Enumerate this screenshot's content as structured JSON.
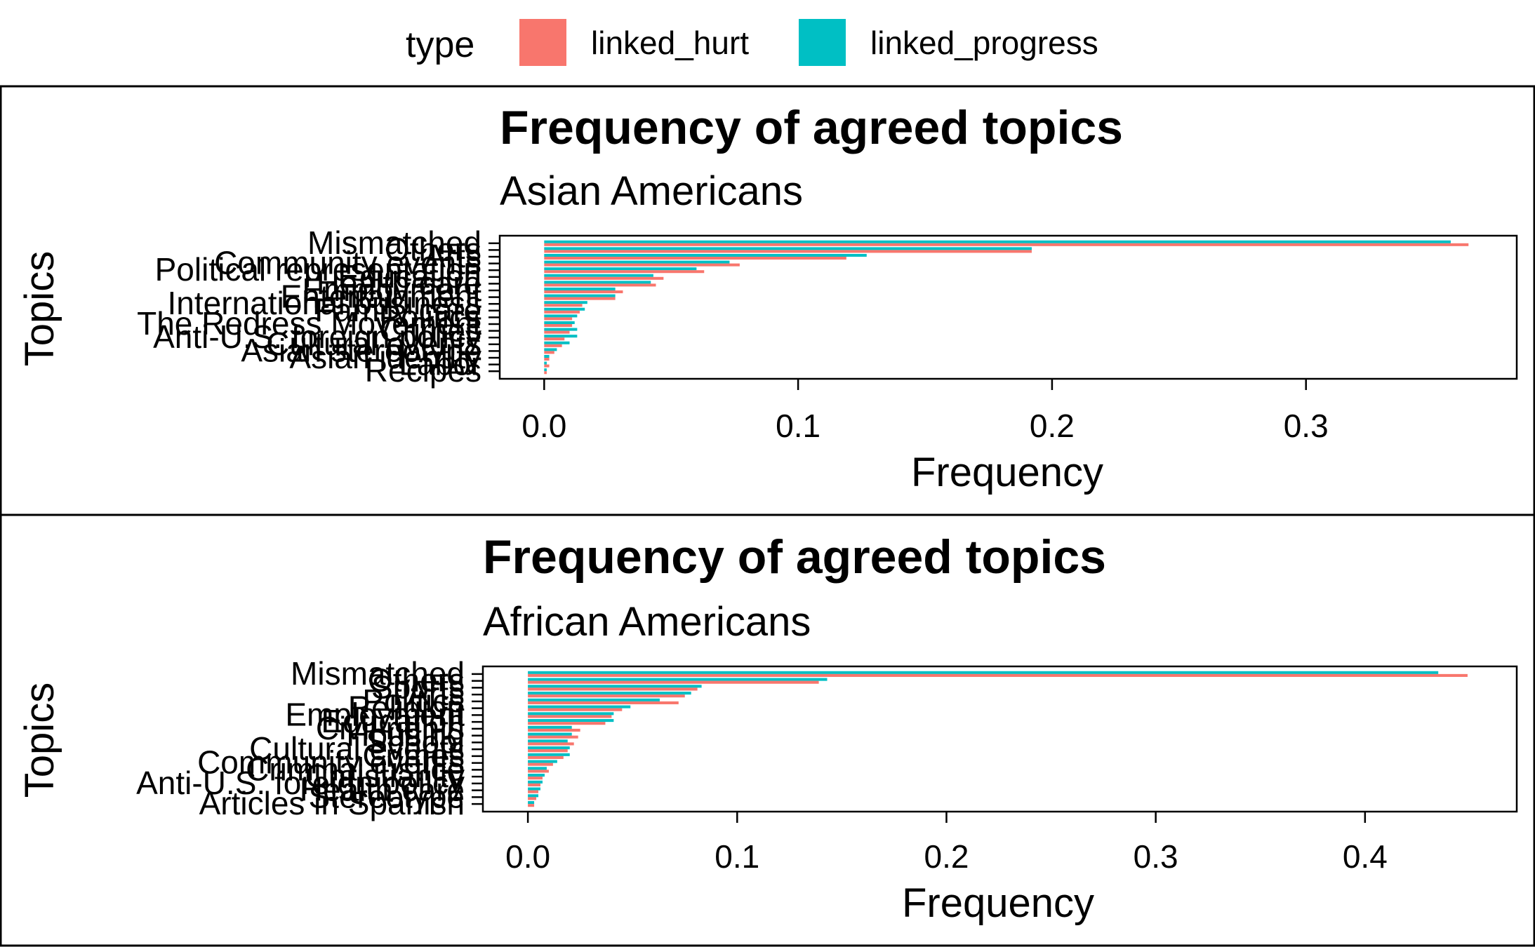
{
  "legend": {
    "title": "type",
    "items": [
      {
        "label": "linked_hurt",
        "color": "#F8766D"
      },
      {
        "label": "linked_progress",
        "color": "#00BFC4"
      }
    ]
  },
  "colors": {
    "linked_hurt": "#F8766D",
    "linked_progress": "#00BFC4"
  },
  "chart_data": [
    {
      "type": "bar",
      "orientation": "horizontal",
      "title": "Frequency of agreed topics",
      "subtitle": "Asian Americans",
      "xlabel": "Frequency",
      "ylabel": "Topics",
      "xlim": [
        -0.0175,
        0.383
      ],
      "xticks": [
        0.0,
        0.1,
        0.2,
        0.3
      ],
      "xtick_labels": [
        "0.0",
        "0.1",
        "0.2",
        "0.3"
      ],
      "grid": false,
      "legend_position": "top",
      "categories": [
        "Mismatched",
        "Others",
        "Arts",
        "Community events",
        "Political representation",
        "Education",
        "Health care",
        "Employment",
        "Entertainment",
        "International business",
        "Family care",
        "Politics",
        "The Redress Movement",
        "Crimes",
        "Anti-U.S. foreign policy",
        "Cultural events",
        "Asian stereotype",
        "Asian identity",
        "Labor",
        "Recipes"
      ],
      "series": [
        {
          "name": "linked_hurt",
          "values": [
            0.364,
            0.192,
            0.119,
            0.077,
            0.063,
            0.047,
            0.044,
            0.031,
            0.028,
            0.015,
            0.014,
            0.011,
            0.011,
            0.01,
            0.008,
            0.007,
            0.004,
            0.002,
            0.002,
            0.001
          ]
        },
        {
          "name": "linked_progress",
          "values": [
            0.357,
            0.192,
            0.127,
            0.073,
            0.06,
            0.043,
            0.042,
            0.028,
            0.028,
            0.017,
            0.016,
            0.013,
            0.012,
            0.013,
            0.013,
            0.01,
            0.005,
            0.002,
            0.001,
            0.001
          ]
        }
      ]
    },
    {
      "type": "bar",
      "orientation": "horizontal",
      "title": "Frequency of agreed topics",
      "subtitle": "African Americans",
      "xlabel": "Frequency",
      "ylabel": "Topics",
      "xlim": [
        -0.0215,
        0.4725
      ],
      "xticks": [
        0.0,
        0.1,
        0.2,
        0.3,
        0.4
      ],
      "xtick_labels": [
        "0.0",
        "0.1",
        "0.2",
        "0.3",
        "0.4"
      ],
      "grid": false,
      "legend_position": "top",
      "categories": [
        "Mismatched",
        "Others",
        "Sports",
        "Arts",
        "Politics",
        "Religion",
        "Employment",
        "Education",
        "Civil rights",
        "Housing",
        "School",
        "Cultural events",
        "Crimes",
        "Community events",
        "Criminal justice",
        "Christianity",
        "Anti-U.S. foreign policy",
        "Health care",
        "Stereotype",
        "Articles in Spanish"
      ],
      "series": [
        {
          "name": "linked_hurt",
          "values": [
            0.449,
            0.139,
            0.081,
            0.075,
            0.072,
            0.045,
            0.04,
            0.037,
            0.025,
            0.024,
            0.022,
            0.019,
            0.017,
            0.012,
            0.01,
            0.007,
            0.006,
            0.005,
            0.004,
            0.003
          ]
        },
        {
          "name": "linked_progress",
          "values": [
            0.435,
            0.143,
            0.083,
            0.078,
            0.063,
            0.049,
            0.041,
            0.041,
            0.021,
            0.021,
            0.019,
            0.02,
            0.02,
            0.014,
            0.009,
            0.008,
            0.007,
            0.006,
            0.005,
            0.003
          ]
        }
      ]
    }
  ]
}
